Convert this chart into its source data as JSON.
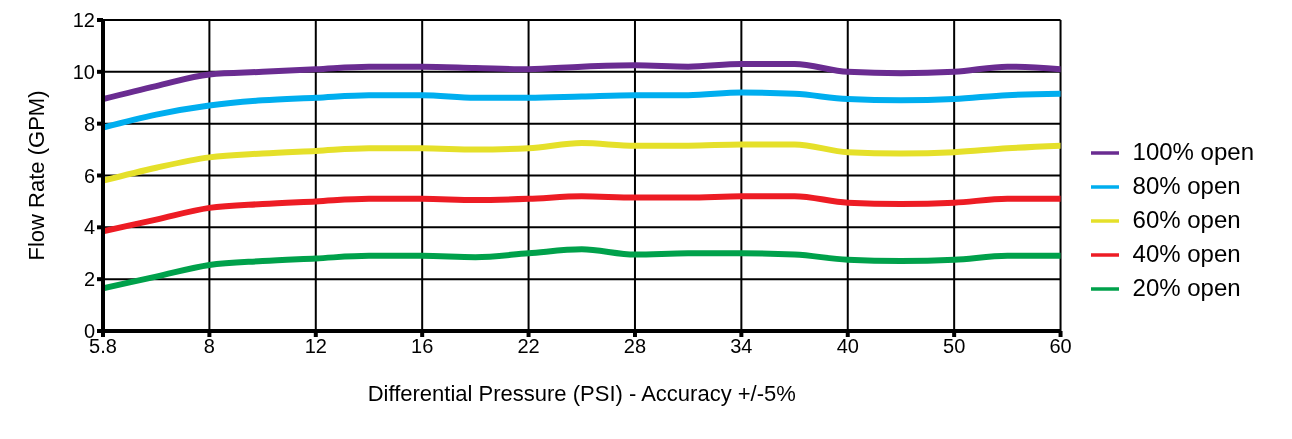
{
  "chart_data": {
    "type": "line",
    "xlabel": "Differential Pressure (PSI) - Accuracy +/-5%",
    "ylabel": "Flow Rate (GPM)",
    "categories": [
      "5.8",
      null,
      "8",
      null,
      "12",
      null,
      "16",
      null,
      "22",
      null,
      "28",
      null,
      "34",
      null,
      "40",
      null,
      "50",
      null,
      "60"
    ],
    "ylim": [
      0,
      12
    ],
    "yticks": [
      0,
      2,
      4,
      6,
      8,
      10,
      12
    ],
    "grid": true,
    "legend": "right",
    "line_style": "solid",
    "marker": "none",
    "series": [
      {
        "name": "100% open",
        "color": "#6a2c91",
        "values": [
          8.95,
          9.45,
          9.9,
          10.0,
          10.1,
          10.2,
          10.2,
          10.15,
          10.1,
          10.2,
          10.25,
          10.2,
          10.3,
          10.3,
          10.0,
          9.95,
          10.0,
          10.2,
          10.1
        ]
      },
      {
        "name": "80% open",
        "color": "#00aeef",
        "values": [
          7.85,
          8.35,
          8.7,
          8.9,
          9.0,
          9.1,
          9.1,
          9.0,
          9.0,
          9.05,
          9.1,
          9.1,
          9.2,
          9.15,
          8.95,
          8.9,
          8.95,
          9.1,
          9.15
        ]
      },
      {
        "name": "60% open",
        "color": "#e5e02a",
        "values": [
          5.8,
          6.3,
          6.7,
          6.85,
          6.95,
          7.05,
          7.05,
          7.0,
          7.05,
          7.25,
          7.15,
          7.15,
          7.2,
          7.2,
          6.9,
          6.85,
          6.9,
          7.05,
          7.15
        ]
      },
      {
        "name": "40% open",
        "color": "#ed1c24",
        "values": [
          3.85,
          4.3,
          4.75,
          4.9,
          5.0,
          5.1,
          5.1,
          5.05,
          5.1,
          5.2,
          5.15,
          5.15,
          5.2,
          5.2,
          4.95,
          4.9,
          4.95,
          5.1,
          5.1
        ]
      },
      {
        "name": "20% open",
        "color": "#00a14b",
        "values": [
          1.65,
          2.1,
          2.55,
          2.7,
          2.8,
          2.9,
          2.9,
          2.85,
          3.0,
          3.15,
          2.95,
          3.0,
          3.0,
          2.95,
          2.75,
          2.7,
          2.75,
          2.9,
          2.9
        ]
      }
    ]
  }
}
